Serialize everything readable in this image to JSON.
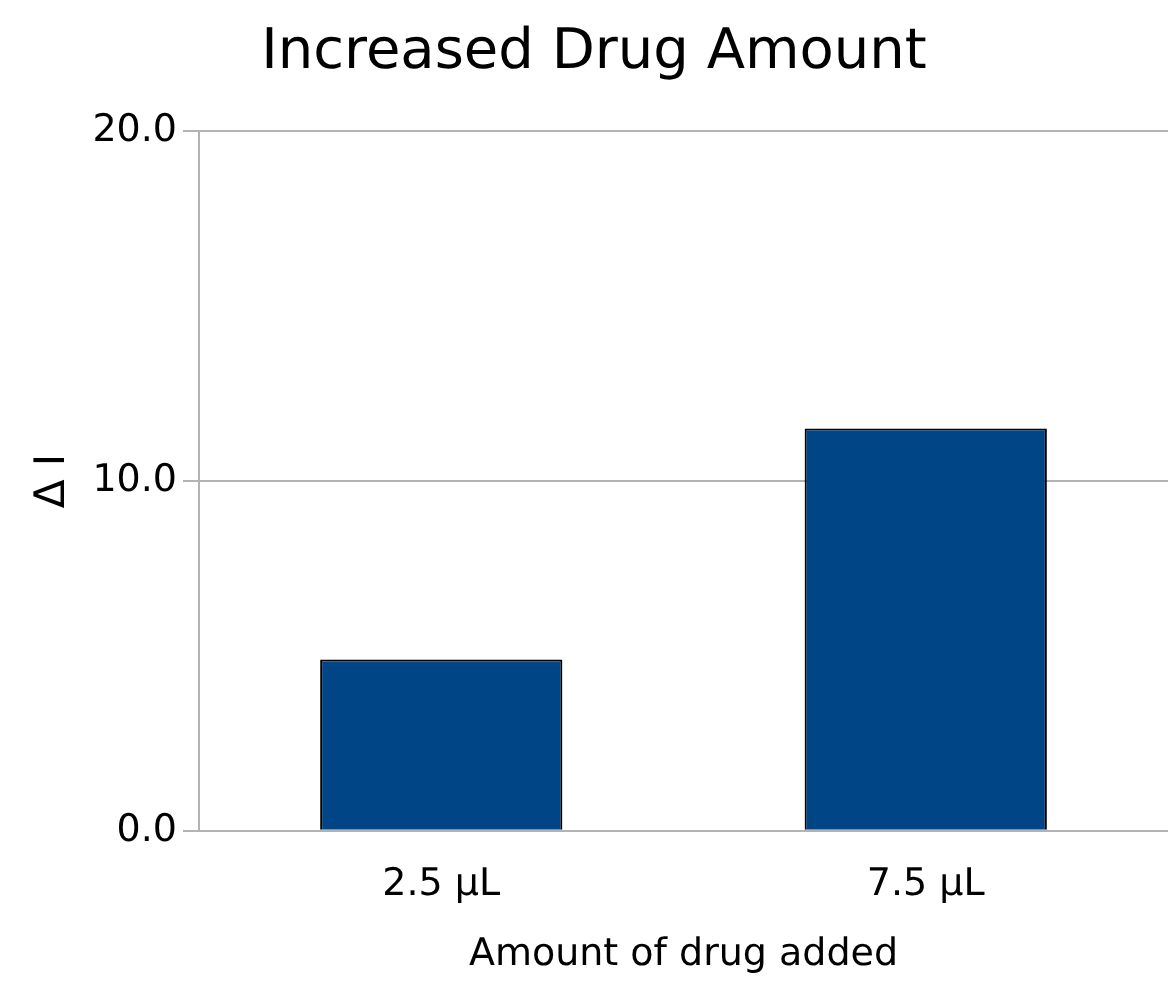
{
  "chart_data": {
    "type": "bar",
    "title": "Increased Drug Amount",
    "xlabel": "Amount of drug added",
    "ylabel": "Δ I",
    "categories": [
      "2.5 µL",
      "7.5 µL"
    ],
    "values": [
      4.9,
      11.5
    ],
    "color": "#004586",
    "ylim": [
      0,
      20
    ],
    "yticks": [
      {
        "value": 0,
        "label": "0.0"
      },
      {
        "value": 10,
        "label": "10.0"
      },
      {
        "value": 20,
        "label": "20.0"
      }
    ],
    "grid": "y"
  }
}
